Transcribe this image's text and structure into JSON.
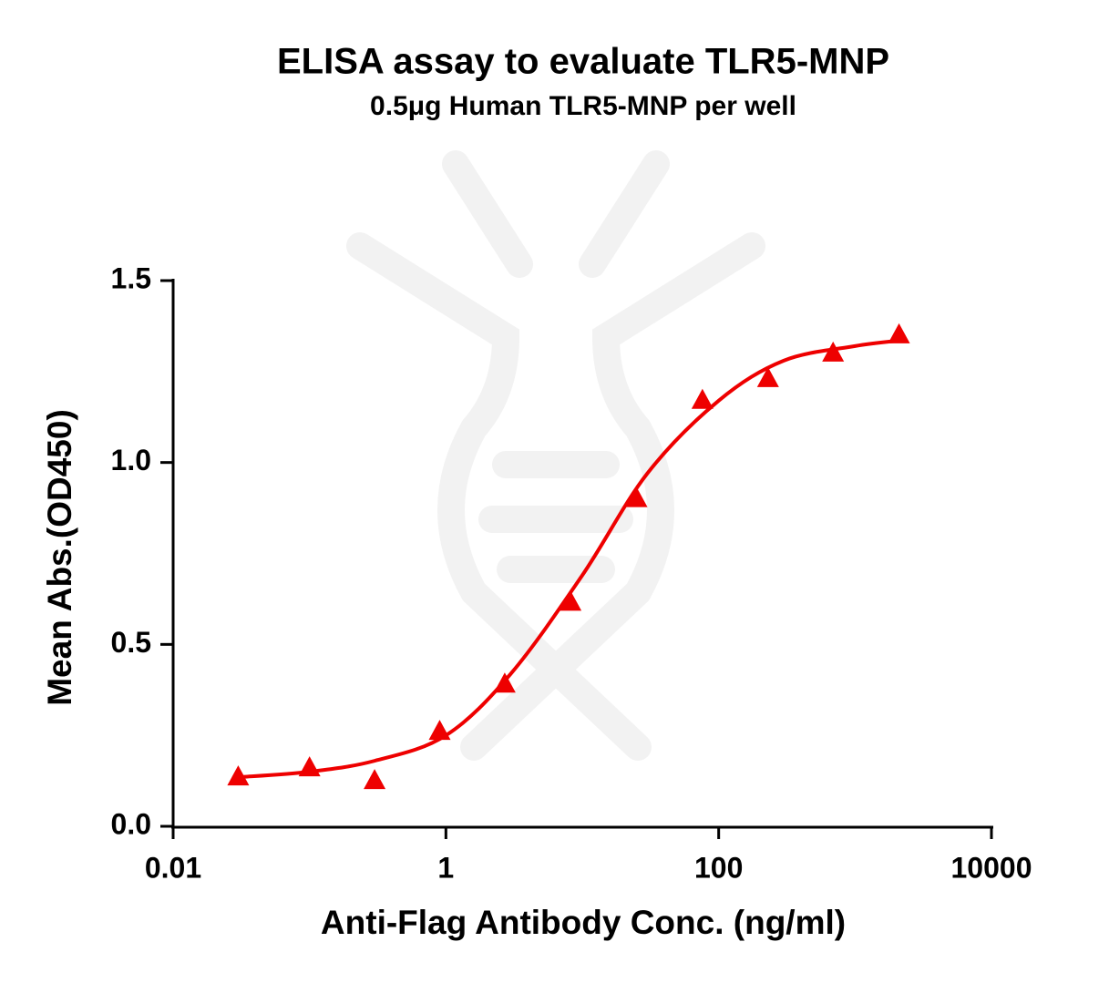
{
  "chart_data": {
    "type": "scatter",
    "title": "ELISA assay to evaluate TLR5-MNP",
    "subtitle": "0.5μg Human TLR5-MNP per well",
    "x_label": "Anti-Flag Antibody Conc. (ng/ml)",
    "y_label": "Mean Abs.(OD450)",
    "x_scale": "log",
    "xlim": [
      0.01,
      10000
    ],
    "xticks": [
      0.01,
      1,
      100,
      10000
    ],
    "ylim": [
      0,
      1.5
    ],
    "yticks": [
      {
        "value": 0,
        "label": "0.0"
      },
      0.5,
      {
        "value": 1,
        "label": "1.0"
      },
      1.5
    ],
    "series": [
      {
        "color": "#ee0000",
        "marker": "triangle",
        "x": [
          0.03,
          0.1,
          0.3,
          0.9,
          2.7,
          8.2,
          25,
          76,
          230,
          690,
          2100
        ],
        "values": [
          0.135,
          0.16,
          0.125,
          0.26,
          0.39,
          0.615,
          0.9,
          1.17,
          1.23,
          1.3,
          1.35
        ]
      }
    ],
    "fit": {
      "color": "#ee0000",
      "x": [
        0.03,
        0.1,
        0.3,
        1,
        3,
        10,
        30,
        100,
        300,
        1000,
        2100
      ],
      "values": [
        0.135,
        0.15,
        0.18,
        0.25,
        0.42,
        0.69,
        0.97,
        1.17,
        1.28,
        1.32,
        1.335
      ]
    }
  }
}
